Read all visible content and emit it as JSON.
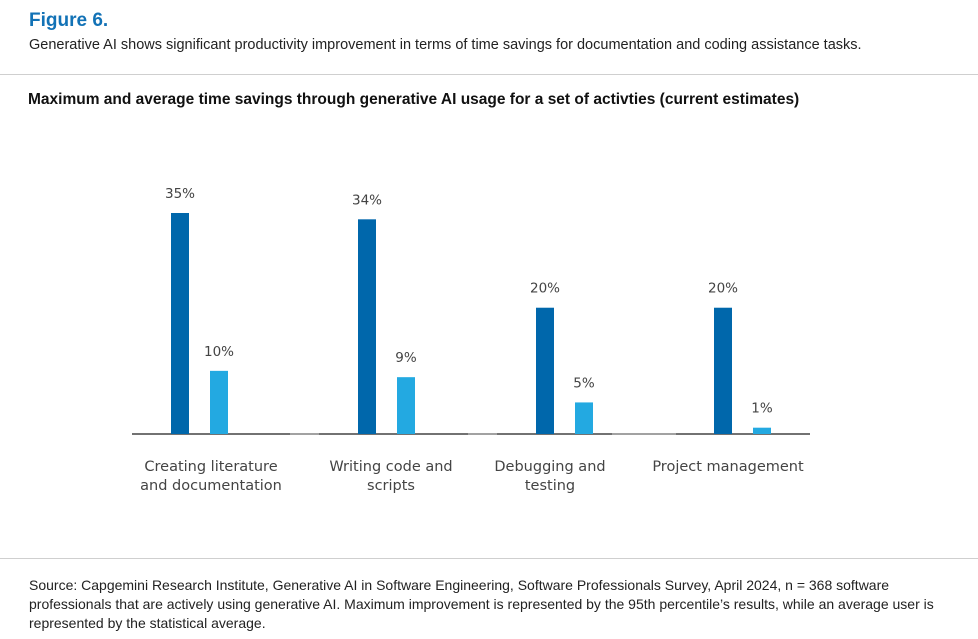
{
  "figure": {
    "label": "Figure 6.",
    "caption": "Generative AI shows significant productivity improvement in terms of time savings for documentation and coding assistance tasks."
  },
  "colors": {
    "maximum": "#0067ab",
    "average": "#23a9e1",
    "axis": "#444444",
    "label": "#444444",
    "accent": "#1272b6"
  },
  "chart_data": {
    "type": "bar",
    "title": "Maximum and average time savings through generative AI usage for a set of activties (current estimates)",
    "xlabel": "",
    "ylabel": "",
    "ylim": [
      0,
      35
    ],
    "grid": false,
    "categories": [
      [
        "Creating literature",
        "and documentation"
      ],
      [
        "Writing code and",
        "scripts"
      ],
      [
        "Debugging and",
        "testing"
      ],
      [
        "Project management"
      ]
    ],
    "series": [
      {
        "values": [
          35,
          34,
          20,
          20
        ],
        "labels": [
          "35%",
          "34%",
          "20%",
          "20%"
        ]
      },
      {
        "values": [
          10,
          9,
          5,
          1
        ],
        "labels": [
          "10%",
          "9%",
          "5%",
          "1%"
        ]
      }
    ]
  },
  "source": "Source: Capgemini Research Institute, Generative AI in Software Engineering, Software Professionals Survey, April 2024, n = 368 software professionals that are actively using generative AI. Maximum improvement is represented by the 95th percentile’s results, while an average user is represented by the statistical average."
}
